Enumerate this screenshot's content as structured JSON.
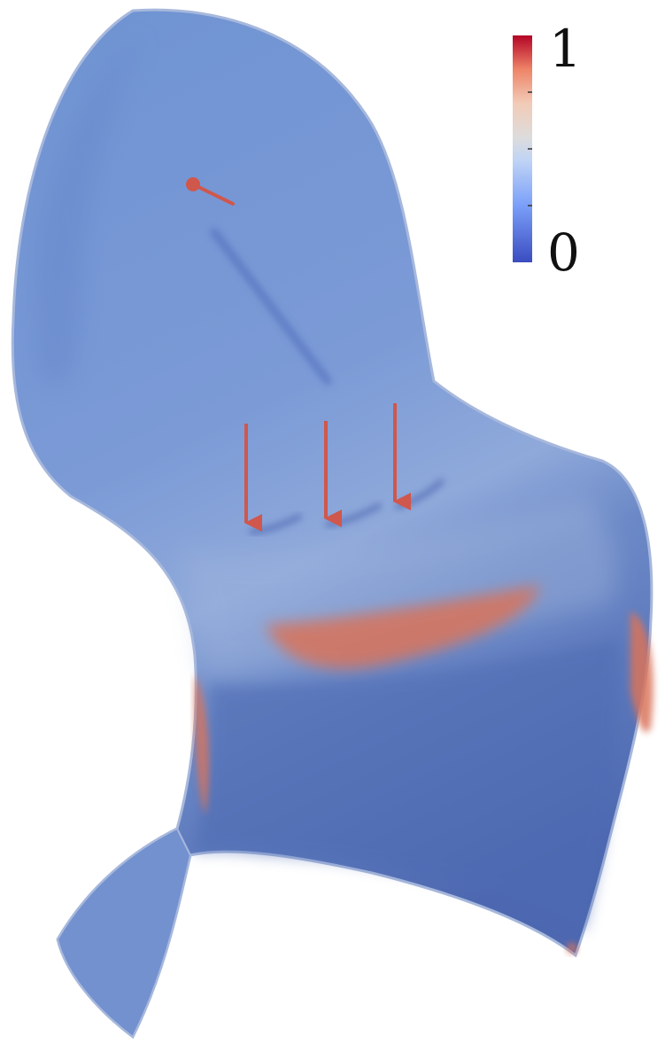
{
  "figure": {
    "kind": "chair-shell-deformation-field",
    "colorbar": {
      "max_label": "1",
      "min_label": "0",
      "colors": [
        "#3b4cc0",
        "#7b9ff9",
        "#c0d4f5",
        "#dddcdc",
        "#f2cbb7",
        "#ee8468",
        "#b40426"
      ]
    },
    "surface_colors": {
      "base": "#6b8fcf",
      "dark": "#4a67b0",
      "light": "#93aedd",
      "hot": "#d9735a"
    },
    "load_arrows": {
      "count": 3,
      "color": "#d0574c"
    },
    "point_load": {
      "color": "#d0574c"
    }
  }
}
